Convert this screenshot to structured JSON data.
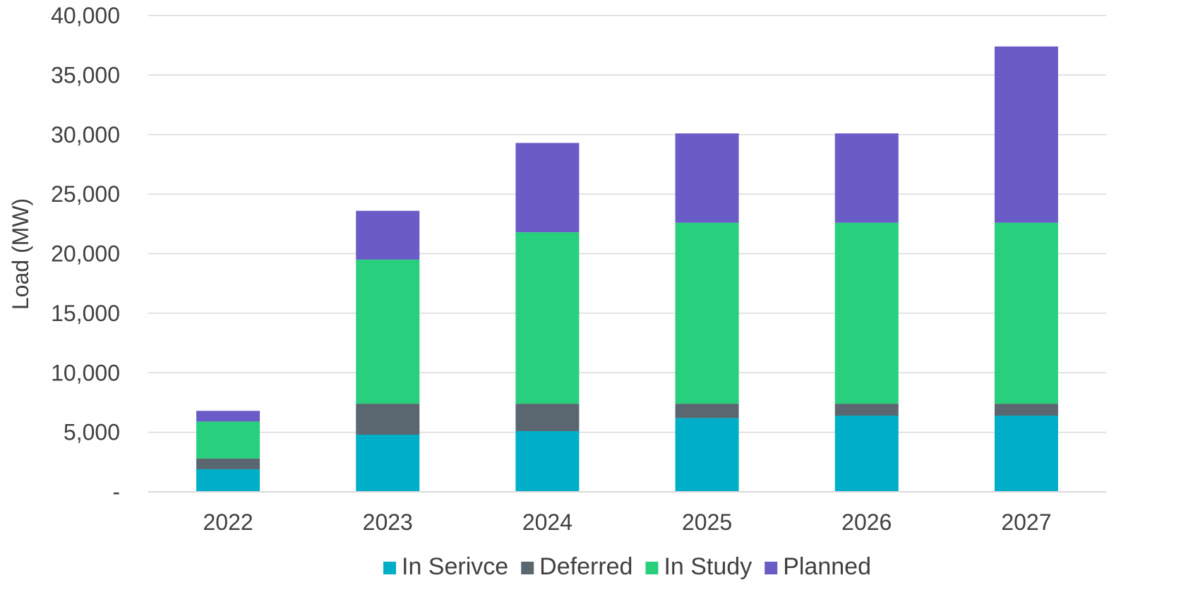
{
  "chart_data": {
    "type": "bar",
    "stacked": true,
    "categories": [
      "2022",
      "2023",
      "2024",
      "2025",
      "2026",
      "2027"
    ],
    "ylabel": "Load (MW)",
    "xlabel": "",
    "ylim": [
      0,
      40000
    ],
    "yticks": [
      0,
      5000,
      10000,
      15000,
      20000,
      25000,
      30000,
      35000,
      40000
    ],
    "ytick_labels": [
      "-",
      "5,000",
      "10,000",
      "15,000",
      "20,000",
      "25,000",
      "30,000",
      "35,000",
      "40,000"
    ],
    "grid": true,
    "legend_position": "bottom",
    "series": [
      {
        "name": "In Serivce",
        "color": "#00AEC7",
        "values": [
          1900,
          4800,
          5100,
          6200,
          6400,
          6400
        ]
      },
      {
        "name": "Deferred",
        "color": "#5A6670",
        "values": [
          900,
          2600,
          2300,
          1200,
          1000,
          1000
        ]
      },
      {
        "name": "In Study",
        "color": "#28D07D",
        "values": [
          3100,
          12100,
          14400,
          15200,
          15200,
          15200
        ]
      },
      {
        "name": "Planned",
        "color": "#6A5CC7",
        "values": [
          900,
          4100,
          7500,
          7500,
          7500,
          14800
        ]
      }
    ]
  }
}
